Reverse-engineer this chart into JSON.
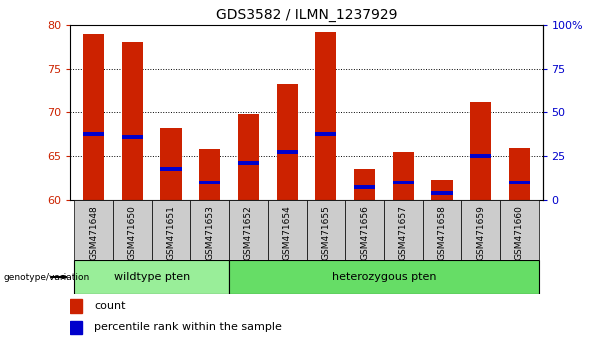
{
  "title": "GDS3582 / ILMN_1237929",
  "samples": [
    "GSM471648",
    "GSM471650",
    "GSM471651",
    "GSM471653",
    "GSM471652",
    "GSM471654",
    "GSM471655",
    "GSM471656",
    "GSM471657",
    "GSM471658",
    "GSM471659",
    "GSM471660"
  ],
  "count_values": [
    79.0,
    78.0,
    68.2,
    65.8,
    69.8,
    73.2,
    79.2,
    63.5,
    65.5,
    62.3,
    71.2,
    65.9
  ],
  "percentile_values": [
    67.5,
    67.2,
    63.5,
    62.0,
    64.2,
    65.5,
    67.5,
    61.5,
    62.0,
    60.8,
    65.0,
    62.0
  ],
  "y_min": 60,
  "y_max": 80,
  "y_ticks": [
    60,
    65,
    70,
    75,
    80
  ],
  "right_y_labels": [
    "0",
    "25",
    "50",
    "75",
    "100%"
  ],
  "bar_color": "#cc2200",
  "percentile_color": "#0000cc",
  "bg_color": "#ffffff",
  "tick_label_color_left": "#cc2200",
  "tick_label_color_right": "#0000cc",
  "group_configs": [
    {
      "label": "wildtype pten",
      "xstart": -0.5,
      "xend": 3.5,
      "color": "#99ee99"
    },
    {
      "label": "heterozygous pten",
      "xstart": 3.5,
      "xend": 11.5,
      "color": "#66dd66"
    }
  ],
  "legend_count": "count",
  "legend_percentile": "percentile rank within the sample",
  "bar_width": 0.55
}
